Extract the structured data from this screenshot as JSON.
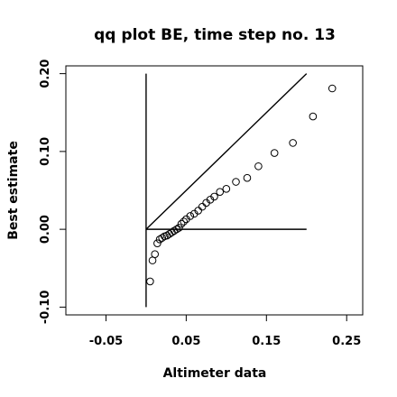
{
  "chart_data": {
    "type": "scatter",
    "title": "qq plot BE, time step no. 13",
    "xlabel": "Altimeter data",
    "ylabel": "Best estimate",
    "xlim": [
      -0.1,
      0.27
    ],
    "ylim": [
      -0.11,
      0.21
    ],
    "x_ticks": [
      -0.05,
      0.05,
      0.15,
      0.25
    ],
    "x_tick_labels": [
      "-0.05",
      "0.05",
      "0.15",
      "0.25"
    ],
    "y_ticks": [
      -0.1,
      0.0,
      0.1,
      0.2
    ],
    "y_tick_labels": [
      "-0.10",
      "0.00",
      "0.10",
      "0.20"
    ],
    "grid": false,
    "reference_lines": [
      {
        "x": [
          0.0,
          0.2
        ],
        "y": [
          0.0,
          0.2
        ]
      },
      {
        "x": [
          0.0,
          0.2
        ],
        "y": [
          0.0,
          0.0
        ]
      },
      {
        "x": [
          0.0,
          0.0
        ],
        "y": [
          -0.1,
          0.2
        ]
      }
    ],
    "points": [
      {
        "x": 0.005,
        "y": -0.067
      },
      {
        "x": 0.008,
        "y": -0.04
      },
      {
        "x": 0.011,
        "y": -0.032
      },
      {
        "x": 0.014,
        "y": -0.018
      },
      {
        "x": 0.017,
        "y": -0.013
      },
      {
        "x": 0.02,
        "y": -0.011
      },
      {
        "x": 0.023,
        "y": -0.009
      },
      {
        "x": 0.026,
        "y": -0.008
      },
      {
        "x": 0.029,
        "y": -0.006
      },
      {
        "x": 0.032,
        "y": -0.004
      },
      {
        "x": 0.035,
        "y": -0.002
      },
      {
        "x": 0.038,
        "y": 0.0
      },
      {
        "x": 0.041,
        "y": 0.002
      },
      {
        "x": 0.044,
        "y": 0.007
      },
      {
        "x": 0.047,
        "y": 0.01
      },
      {
        "x": 0.05,
        "y": 0.013
      },
      {
        "x": 0.055,
        "y": 0.017
      },
      {
        "x": 0.06,
        "y": 0.02
      },
      {
        "x": 0.065,
        "y": 0.024
      },
      {
        "x": 0.07,
        "y": 0.029
      },
      {
        "x": 0.075,
        "y": 0.034
      },
      {
        "x": 0.08,
        "y": 0.038
      },
      {
        "x": 0.085,
        "y": 0.042
      },
      {
        "x": 0.092,
        "y": 0.048
      },
      {
        "x": 0.1,
        "y": 0.052
      },
      {
        "x": 0.112,
        "y": 0.061
      },
      {
        "x": 0.126,
        "y": 0.066
      },
      {
        "x": 0.14,
        "y": 0.081
      },
      {
        "x": 0.16,
        "y": 0.098
      },
      {
        "x": 0.183,
        "y": 0.111
      },
      {
        "x": 0.208,
        "y": 0.145
      },
      {
        "x": 0.232,
        "y": 0.181
      }
    ]
  }
}
